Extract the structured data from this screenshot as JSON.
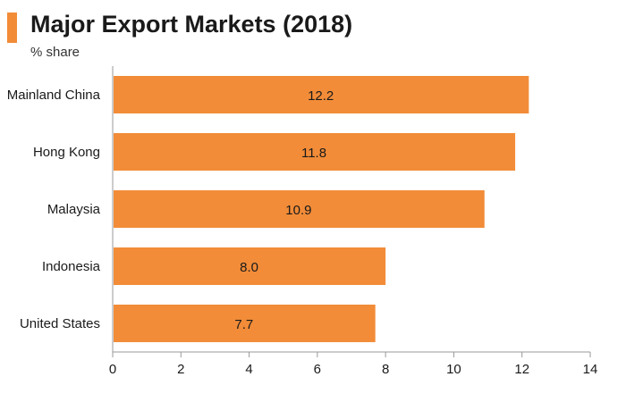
{
  "header": {
    "title": "Major Export Markets (2018)",
    "subtitle": "% share"
  },
  "colors": {
    "accent": "#f28c38",
    "bar": "#f28c38",
    "axis": "#999999"
  },
  "chart_data": {
    "type": "bar",
    "orientation": "horizontal",
    "title": "Major Export Markets (2018)",
    "subtitle": "% share",
    "categories": [
      "Mainland China",
      "Hong Kong",
      "Malaysia",
      "Indonesia",
      "United States"
    ],
    "values": [
      12.2,
      11.8,
      10.9,
      8.0,
      7.7
    ],
    "value_labels": [
      "12.2",
      "11.8",
      "10.9",
      "8.0",
      "7.7"
    ],
    "xlim": [
      0,
      14
    ],
    "xticks": [
      0,
      2,
      4,
      6,
      8,
      10,
      12,
      14
    ],
    "grid": false,
    "legend": "none"
  }
}
